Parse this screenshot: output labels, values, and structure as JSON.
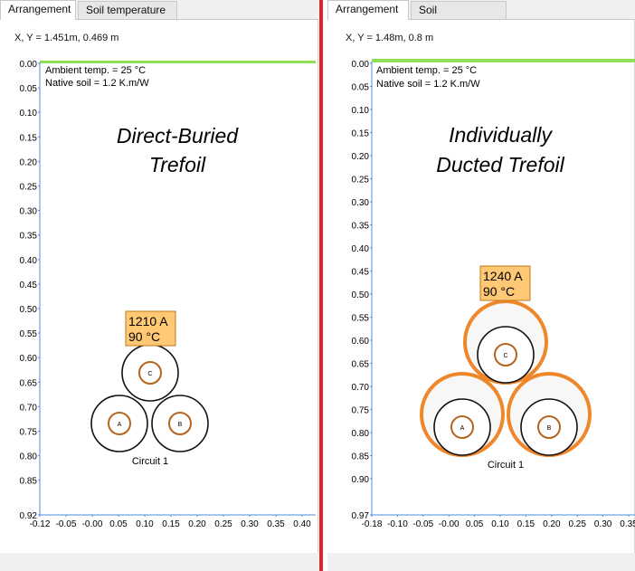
{
  "left": {
    "tabs": [
      {
        "label": "Arrangement",
        "active": true
      },
      {
        "label": "Soil temperature",
        "active": false
      }
    ],
    "coord_readout": "X, Y = 1.451m, 0.469 m",
    "info_lines": [
      "Ambient temp. = 25 °C",
      "Native soil = 1.2 K.m/W"
    ],
    "title_lines": [
      "Direct-Buried",
      "Trefoil"
    ],
    "y_ticks": [
      "0.00",
      "0.05",
      "0.10",
      "0.15",
      "0.20",
      "0.25",
      "0.30",
      "0.35",
      "0.40",
      "0.45",
      "0.50",
      "0.55",
      "0.60",
      "0.65",
      "0.70",
      "0.75",
      "0.80",
      "0.85",
      "0.92"
    ],
    "x_ticks": [
      "-0.12",
      "-0.05",
      "-0.00",
      "0.05",
      "0.10",
      "0.15",
      "0.20",
      "0.25",
      "0.30",
      "0.35",
      "0.40"
    ],
    "rating_lines": [
      "1210 A",
      "90 °C"
    ],
    "cables": [
      {
        "phase": "C"
      },
      {
        "phase": "A"
      },
      {
        "phase": "B"
      }
    ],
    "circuit_label": "Circuit 1"
  },
  "right": {
    "tabs": [
      {
        "label": "Arrangement",
        "active": true
      },
      {
        "label": "Soil temperature",
        "active": false
      }
    ],
    "coord_readout": "X, Y = 1.48m, 0.8 m",
    "info_lines": [
      "Ambient temp. = 25 °C",
      "Native soil = 1.2 K.m/W"
    ],
    "title_lines": [
      "Individually",
      "Ducted Trefoil"
    ],
    "y_ticks": [
      "0.00",
      "0.05",
      "0.10",
      "0.15",
      "0.20",
      "0.25",
      "0.30",
      "0.35",
      "0.40",
      "0.45",
      "0.50",
      "0.55",
      "0.60",
      "0.65",
      "0.70",
      "0.75",
      "0.80",
      "0.85",
      "0.90",
      "0.97"
    ],
    "x_ticks": [
      "-0.18",
      "-0.10",
      "-0.05",
      "-0.00",
      "0.05",
      "0.10",
      "0.15",
      "0.20",
      "0.25",
      "0.30",
      "0.35"
    ],
    "rating_lines": [
      "1240 A",
      "90 °C"
    ],
    "cables": [
      {
        "phase": "C"
      },
      {
        "phase": "A"
      },
      {
        "phase": "B"
      }
    ],
    "circuit_label": "Circuit 1"
  },
  "colors": {
    "ground_line": "#8ee05a",
    "axis": "#4a8fe0",
    "rating_fill": "#ffc875",
    "rating_border": "#c07a18",
    "duct": "#f0862a",
    "conductor": "#b5651d",
    "divider": "#e5232b"
  }
}
